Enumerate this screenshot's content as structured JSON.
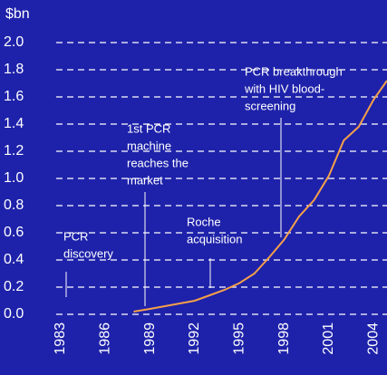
{
  "chart_data": {
    "type": "line",
    "y_unit_label": "$bn",
    "x": [
      1987.9,
      1989,
      1990,
      1991,
      1992,
      1993,
      1994,
      1995,
      1996,
      1997,
      1998,
      1999,
      2000,
      2001,
      2002,
      2003,
      2004,
      2004.9
    ],
    "series": [
      {
        "color": "#f5a04a",
        "values": [
          0.02,
          0.04,
          0.06,
          0.08,
          0.1,
          0.14,
          0.18,
          0.23,
          0.3,
          0.42,
          0.55,
          0.72,
          0.84,
          1.02,
          1.28,
          1.38,
          1.58,
          1.72
        ]
      }
    ],
    "xlim": [
      1982.7,
      2004.9
    ],
    "xticks": [
      1983,
      1986,
      1989,
      1992,
      1995,
      1998,
      2001,
      2004
    ],
    "ylim": [
      0,
      2
    ],
    "yticks": [
      {
        "value": 0,
        "label": "0.0"
      },
      0.2,
      0.4,
      0.6,
      0.8,
      {
        "value": 1,
        "label": "1.0"
      },
      1.2,
      1.4,
      1.6,
      1.8,
      {
        "value": 2,
        "label": "2.0"
      }
    ],
    "grid": true,
    "annotations": [
      {
        "lines": [
          "PCR",
          "discovery"
        ]
      },
      {
        "lines": [
          "1st PCR",
          "machine",
          "reaches the",
          "market"
        ]
      },
      {
        "lines": [
          "Roche",
          "acquisition"
        ]
      },
      {
        "lines": [
          "PCR breakthrough",
          "with HIV blood-",
          "screening"
        ]
      }
    ]
  }
}
